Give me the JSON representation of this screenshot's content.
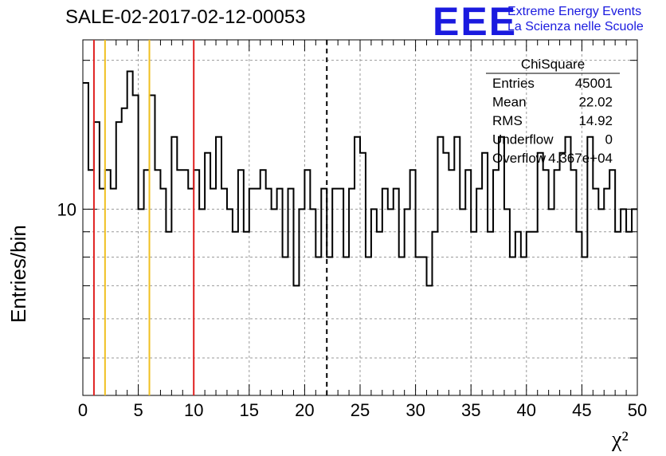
{
  "chart_data": {
    "type": "histogram",
    "title": "SALE-02-2017-02-12-00053",
    "xlabel": "χ²",
    "ylabel": "Entries/bin",
    "xlim": [
      0,
      50
    ],
    "ylim": [
      4.2,
      22
    ],
    "yscale": "log",
    "grid": true,
    "x_ticks": [
      "0",
      "5",
      "10",
      "15",
      "20",
      "25",
      "30",
      "35",
      "40",
      "45",
      "50"
    ],
    "y_tick_label": "10",
    "bin_width": 0.5,
    "x": [
      0,
      0.5,
      1,
      1.5,
      2,
      2.5,
      3,
      3.5,
      4,
      4.5,
      5,
      5.5,
      6,
      6.5,
      7,
      7.5,
      8,
      8.5,
      9,
      9.5,
      10,
      10.5,
      11,
      11.5,
      12,
      12.5,
      13,
      13.5,
      14,
      14.5,
      15,
      15.5,
      16,
      16.5,
      17,
      17.5,
      18,
      18.5,
      19,
      19.5,
      20,
      20.5,
      21,
      21.5,
      22,
      22.5,
      23,
      23.5,
      24,
      24.5,
      25,
      25.5,
      26,
      26.5,
      27,
      27.5,
      28,
      28.5,
      29,
      29.5,
      30,
      30.5,
      31,
      31.5,
      32,
      32.5,
      33,
      33.5,
      34,
      34.5,
      35,
      35.5,
      36,
      36.5,
      37,
      37.5,
      38,
      38.5,
      39,
      39.5,
      40,
      40.5,
      41,
      41.5,
      42,
      42.5,
      43,
      43.5,
      44,
      44.5,
      45,
      45.5,
      46,
      46.5,
      47,
      47.5,
      48,
      48.5,
      49,
      49.5
    ],
    "values": [
      18,
      12,
      15,
      11,
      12,
      11,
      15,
      16,
      19,
      17,
      10,
      12,
      17,
      12,
      11,
      9,
      14,
      12,
      12,
      11,
      12,
      10,
      13,
      11,
      14,
      11,
      10,
      9,
      12,
      9,
      11,
      11,
      12,
      11,
      10,
      11,
      8,
      11,
      7,
      10,
      12,
      10,
      8,
      11,
      8,
      11,
      11,
      8,
      11,
      14,
      13,
      8,
      10,
      9,
      11,
      10,
      11,
      8,
      10,
      12,
      8,
      8,
      7,
      9,
      14,
      13,
      12,
      14,
      10,
      12,
      9,
      11,
      13,
      9,
      12,
      14,
      10,
      8,
      9,
      8,
      9,
      9,
      13,
      12,
      10,
      12,
      13,
      14,
      12,
      9,
      8,
      14,
      11,
      10,
      11,
      12,
      9,
      10,
      9,
      10
    ],
    "vlines": [
      {
        "x": 1,
        "color": "#e02020",
        "style": "solid"
      },
      {
        "x": 2,
        "color": "#f0c020",
        "style": "solid"
      },
      {
        "x": 6,
        "color": "#f0c020",
        "style": "solid"
      },
      {
        "x": 10,
        "color": "#e02020",
        "style": "solid"
      },
      {
        "x": 22,
        "color": "#000000",
        "style": "dashed"
      }
    ],
    "stats_box": {
      "title": "ChiSquare",
      "rows": [
        {
          "label": "Entries",
          "value": "45001"
        },
        {
          "label": "Mean",
          "value": "22.02"
        },
        {
          "label": "RMS",
          "value": "14.92"
        },
        {
          "label": "Underflow",
          "value": "0"
        },
        {
          "label": "Overflow",
          "value": "4.367e+04"
        }
      ]
    }
  },
  "logo": {
    "mark": "EEE",
    "line1": "Extreme Energy Events",
    "line2": "La Scienza nelle Scuole"
  },
  "colors": {
    "logo": "#1a1adf",
    "histogram": "#000000",
    "grid": "#9a9a9a"
  }
}
